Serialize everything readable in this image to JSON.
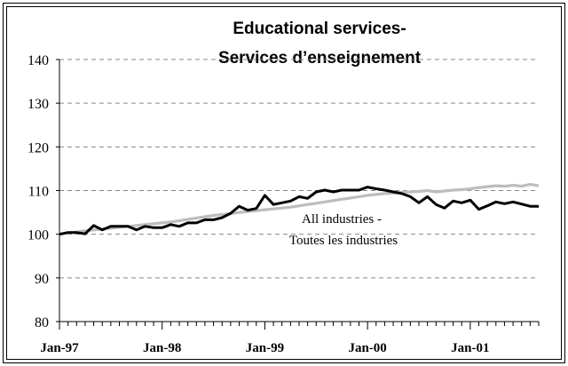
{
  "chart_data": {
    "type": "line",
    "title": "Educational services-",
    "subtitle": "Services d’enseignement",
    "ylim": [
      80,
      140
    ],
    "yticks": [
      80,
      90,
      100,
      110,
      120,
      130,
      140
    ],
    "xticks": [
      "Jan-97",
      "Jan-98",
      "Jan-99",
      "Jan-00",
      "Jan-01"
    ],
    "grid": true,
    "annotation": [
      "All industries -",
      "Toutes les industries"
    ],
    "x_start": "Jan-97",
    "x_end": "May-01",
    "colors": {
      "educational": "#000000",
      "all_industries": "#bdbdbd",
      "grid": "#888888"
    },
    "series": [
      {
        "values": [
          100.0,
          100.4,
          100.4,
          100.1,
          102.0,
          101.0,
          101.8,
          101.8,
          101.8,
          101.0,
          101.8,
          101.5,
          101.5,
          102.2,
          101.8,
          102.6,
          102.6,
          103.3,
          103.3,
          103.8,
          104.8,
          106.4,
          105.5,
          105.9,
          108.9,
          106.8,
          107.2,
          107.6,
          108.6,
          108.2,
          109.7,
          110.1,
          109.7,
          110.1,
          110.1,
          110.1,
          110.8,
          110.4,
          110.1,
          109.7,
          109.3,
          108.6,
          107.2,
          108.6,
          106.8,
          106.0,
          107.6,
          107.2,
          107.8,
          105.7,
          106.5,
          107.4,
          107.0,
          107.4,
          106.9,
          106.4,
          106.4
        ],
        "color": "#000000"
      },
      {
        "values": [
          100.0,
          100.3,
          100.5,
          100.8,
          101.0,
          101.2,
          101.4,
          101.6,
          101.8,
          102.0,
          102.2,
          102.4,
          102.6,
          102.8,
          103.1,
          103.4,
          103.7,
          104.0,
          104.3,
          104.5,
          104.7,
          105.0,
          105.2,
          105.4,
          105.6,
          105.8,
          106.0,
          106.2,
          106.5,
          106.8,
          107.1,
          107.4,
          107.7,
          108.0,
          108.3,
          108.6,
          108.9,
          109.1,
          109.3,
          109.4,
          109.6,
          109.7,
          109.8,
          110.0,
          109.7,
          109.9,
          110.1,
          110.2,
          110.4,
          110.7,
          110.9,
          111.1,
          111.0,
          111.2,
          111.0,
          111.4,
          111.1
        ],
        "color": "#bdbdbd"
      }
    ]
  }
}
